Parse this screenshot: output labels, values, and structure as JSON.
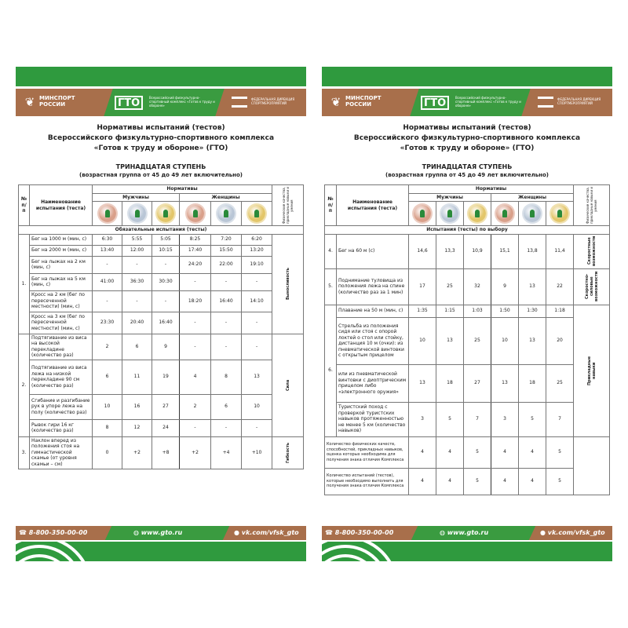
{
  "header": {
    "ministry": "МИНСПОРТ\nРОССИИ",
    "gto_logo": "ГТО",
    "gto_text": "Всероссийский физкультурно-спортивный комплекс «Готов к труду и обороне»",
    "directorate": "ФЕДЕРАЛЬНАЯ ДИРЕКЦИЯ СПОРТМЕРОПРИЯТИЙ"
  },
  "title": [
    "Нормативы испытаний (тестов)",
    "Всероссийского физкультурно-спортивного комплекса",
    "«Готов к труду и обороне» (ГТО)"
  ],
  "stage": "ТРИНАДЦАТАЯ СТУПЕНЬ",
  "age_group": "(возрастная группа от 45 до 49 лет включительно)",
  "table_header": {
    "num": "№ п/п",
    "name": "Наименование испытания (теста)",
    "norms": "Нормативы",
    "men": "Мужчины",
    "women": "Женщины",
    "qualities": "Физические качества, прикладные навыки и умения",
    "medals": [
      "bronze",
      "silver",
      "gold",
      "bronze",
      "silver",
      "gold"
    ]
  },
  "medal_colors": {
    "bronze": "#d9a08a",
    "silver": "#b9c6d6",
    "gold": "#e3c66a"
  },
  "footer": {
    "phone": "8-800-350-00-00",
    "site": "www.gto.ru",
    "vk": "vk.com/vfsk_gto"
  },
  "pages": [
    {
      "section": "Обязательные испытания (тесты)",
      "groups": [
        {
          "num": "1.",
          "quality": "Выносливость",
          "tests": [
            {
              "name": "Бег на 1000 м (мин, с)",
              "values": [
                "6:30",
                "5:55",
                "5:05",
                "8:25",
                "7:20",
                "6:20"
              ]
            },
            {
              "name": "Бег на 2000 м (мин, с)",
              "values": [
                "13:40",
                "12:00",
                "10:15",
                "17:40",
                "15:50",
                "13:20"
              ]
            },
            {
              "name": "Бег на лыжах на 2 км (мин, с)",
              "values": [
                "-",
                "-",
                "-",
                "24:20",
                "22:00",
                "19:10"
              ]
            },
            {
              "name": "Бег на лыжах на 5 км (мин, с)",
              "values": [
                "41:00",
                "36:30",
                "30:30",
                "-",
                "-",
                "-"
              ]
            },
            {
              "name": "Кросс на 2 км (бег по пересеченной местности) (мин, с)",
              "values": [
                "-",
                "-",
                "-",
                "18:20",
                "16:40",
                "14:10"
              ]
            },
            {
              "name": "Кросс на 3 км (бег по пересеченной местности) (мин, с)",
              "values": [
                "23:30",
                "20:40",
                "16:40",
                "-",
                "-",
                "-"
              ]
            }
          ]
        },
        {
          "num": "2.",
          "quality": "Сила",
          "tests": [
            {
              "name": "Подтягивание из виса на высокой перекладине (количество раз)",
              "values": [
                "2",
                "6",
                "9",
                "-",
                "-",
                "-"
              ]
            },
            {
              "name": "Подтягивание из виса лежа на низкой перекладине 90 см (количество раз)",
              "values": [
                "6",
                "11",
                "19",
                "4",
                "8",
                "13"
              ]
            },
            {
              "name": "Сгибание и разгибание рук в упоре лежа на полу (количество раз)",
              "values": [
                "10",
                "16",
                "27",
                "2",
                "6",
                "10"
              ]
            },
            {
              "name": "Рывок гири 16 кг (количество раз)",
              "values": [
                "8",
                "12",
                "24",
                "-",
                "-",
                "-"
              ]
            }
          ]
        },
        {
          "num": "3.",
          "quality": "Гибкость",
          "tests": [
            {
              "name": "Наклон вперед из положения стоя на гимнастической скамье (от уровня скамьи – см)",
              "values": [
                "0",
                "+2",
                "+8",
                "+2",
                "+4",
                "+10"
              ]
            }
          ]
        }
      ],
      "summary": []
    },
    {
      "section": "Испытания (тесты) по выбору",
      "groups": [
        {
          "num": "4.",
          "quality": "Скоростные возможности",
          "tests": [
            {
              "name": "Бег на 60 м (с)",
              "values": [
                "14,6",
                "13,3",
                "10,9",
                "15,1",
                "13,8",
                "11,4"
              ]
            }
          ]
        },
        {
          "num": "5.",
          "quality": "Скоростно-силовые возможности",
          "tests": [
            {
              "name": "Поднимание туловища из положения лежа на спине (количество раз за 1 мин)",
              "values": [
                "17",
                "25",
                "32",
                "9",
                "13",
                "22"
              ]
            }
          ]
        },
        {
          "num": "6.",
          "quality": "Прикладные навыки",
          "tests": [
            {
              "name": "Плавание на 50 м (мин, с)",
              "values": [
                "1:35",
                "1:15",
                "1:03",
                "1:50",
                "1:30",
                "1:18"
              ]
            },
            {
              "name": "Стрельба из положения сидя или стоя с опорой локтей о стол или стойку, дистанция 10 м (очки): из пневматической винтовки с открытым прицелом",
              "values": [
                "10",
                "13",
                "25",
                "10",
                "13",
                "20"
              ]
            },
            {
              "name": "или из пневматической винтовки с диоптрическим прицелом либо «электронного оружия»",
              "values": [
                "13",
                "18",
                "27",
                "13",
                "18",
                "25"
              ]
            },
            {
              "name": "Туристский поход с проверкой туристских навыков протяженностью не менее 5 км (количество навыков)",
              "values": [
                "3",
                "5",
                "7",
                "3",
                "5",
                "7"
              ]
            }
          ]
        }
      ],
      "summary": [
        {
          "name": "Количество физических качеств, способностей, прикладных навыков, оценка которых необходима для получения знака отличия Комплекса",
          "values": [
            "4",
            "4",
            "5",
            "4",
            "4",
            "5"
          ]
        },
        {
          "name": "Количество испытаний (тестов), которые необходимо выполнить для получения знака отличия Комплекса",
          "values": [
            "4",
            "4",
            "5",
            "4",
            "4",
            "5"
          ]
        }
      ]
    }
  ]
}
